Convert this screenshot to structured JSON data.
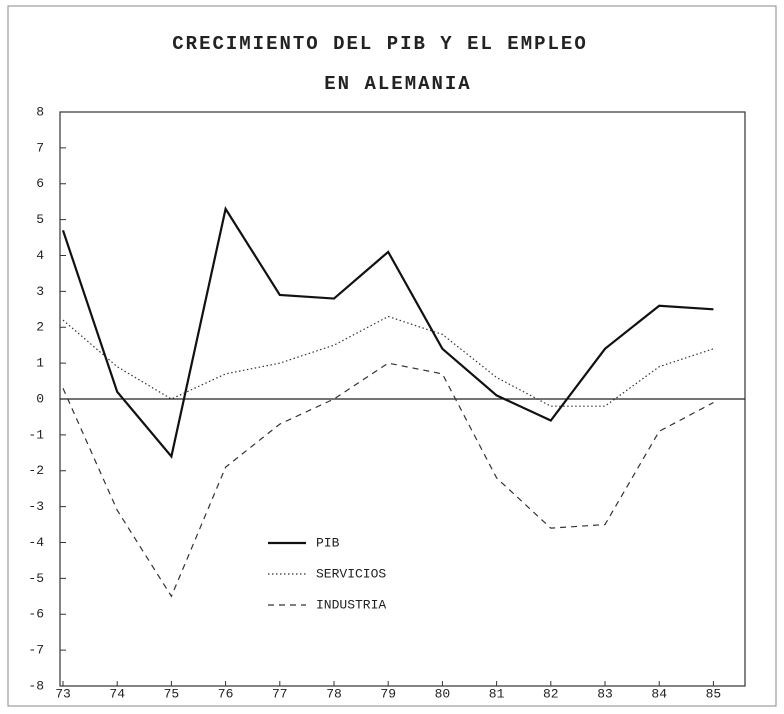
{
  "chart_data": {
    "type": "line",
    "title": "CRECIMIENTO DEL PIB Y EL EMPLEO",
    "subtitle": "EN ALEMANIA",
    "categories": [
      "73",
      "74",
      "75",
      "76",
      "77",
      "78",
      "79",
      "80",
      "81",
      "82",
      "83",
      "84",
      "85"
    ],
    "series": [
      {
        "name": "PIB",
        "color": "#111111",
        "dash": "solid",
        "values": [
          4.7,
          0.2,
          -1.6,
          5.3,
          2.9,
          2.8,
          4.1,
          1.4,
          0.1,
          -0.6,
          1.4,
          2.6,
          2.5
        ]
      },
      {
        "name": "SERVICIOS",
        "color": "#333333",
        "dash": "dotted",
        "values": [
          2.2,
          0.9,
          0.0,
          0.7,
          1.0,
          1.5,
          2.3,
          1.8,
          0.6,
          -0.2,
          -0.2,
          0.9,
          1.4
        ]
      },
      {
        "name": "INDUSTRIA",
        "color": "#333333",
        "dash": "dashed",
        "values": [
          0.3,
          -3.1,
          -5.5,
          -1.9,
          -0.7,
          0.0,
          1.0,
          0.7,
          -2.2,
          -3.6,
          -3.5,
          -0.9,
          -0.1
        ]
      }
    ],
    "ylim": [
      -8,
      8
    ],
    "yticks": [
      -8,
      -7,
      -6,
      -5,
      -4,
      -3,
      -2,
      -1,
      0,
      1,
      2,
      3,
      4,
      5,
      6,
      7,
      8
    ],
    "grid": false,
    "legend": "lower-left"
  }
}
